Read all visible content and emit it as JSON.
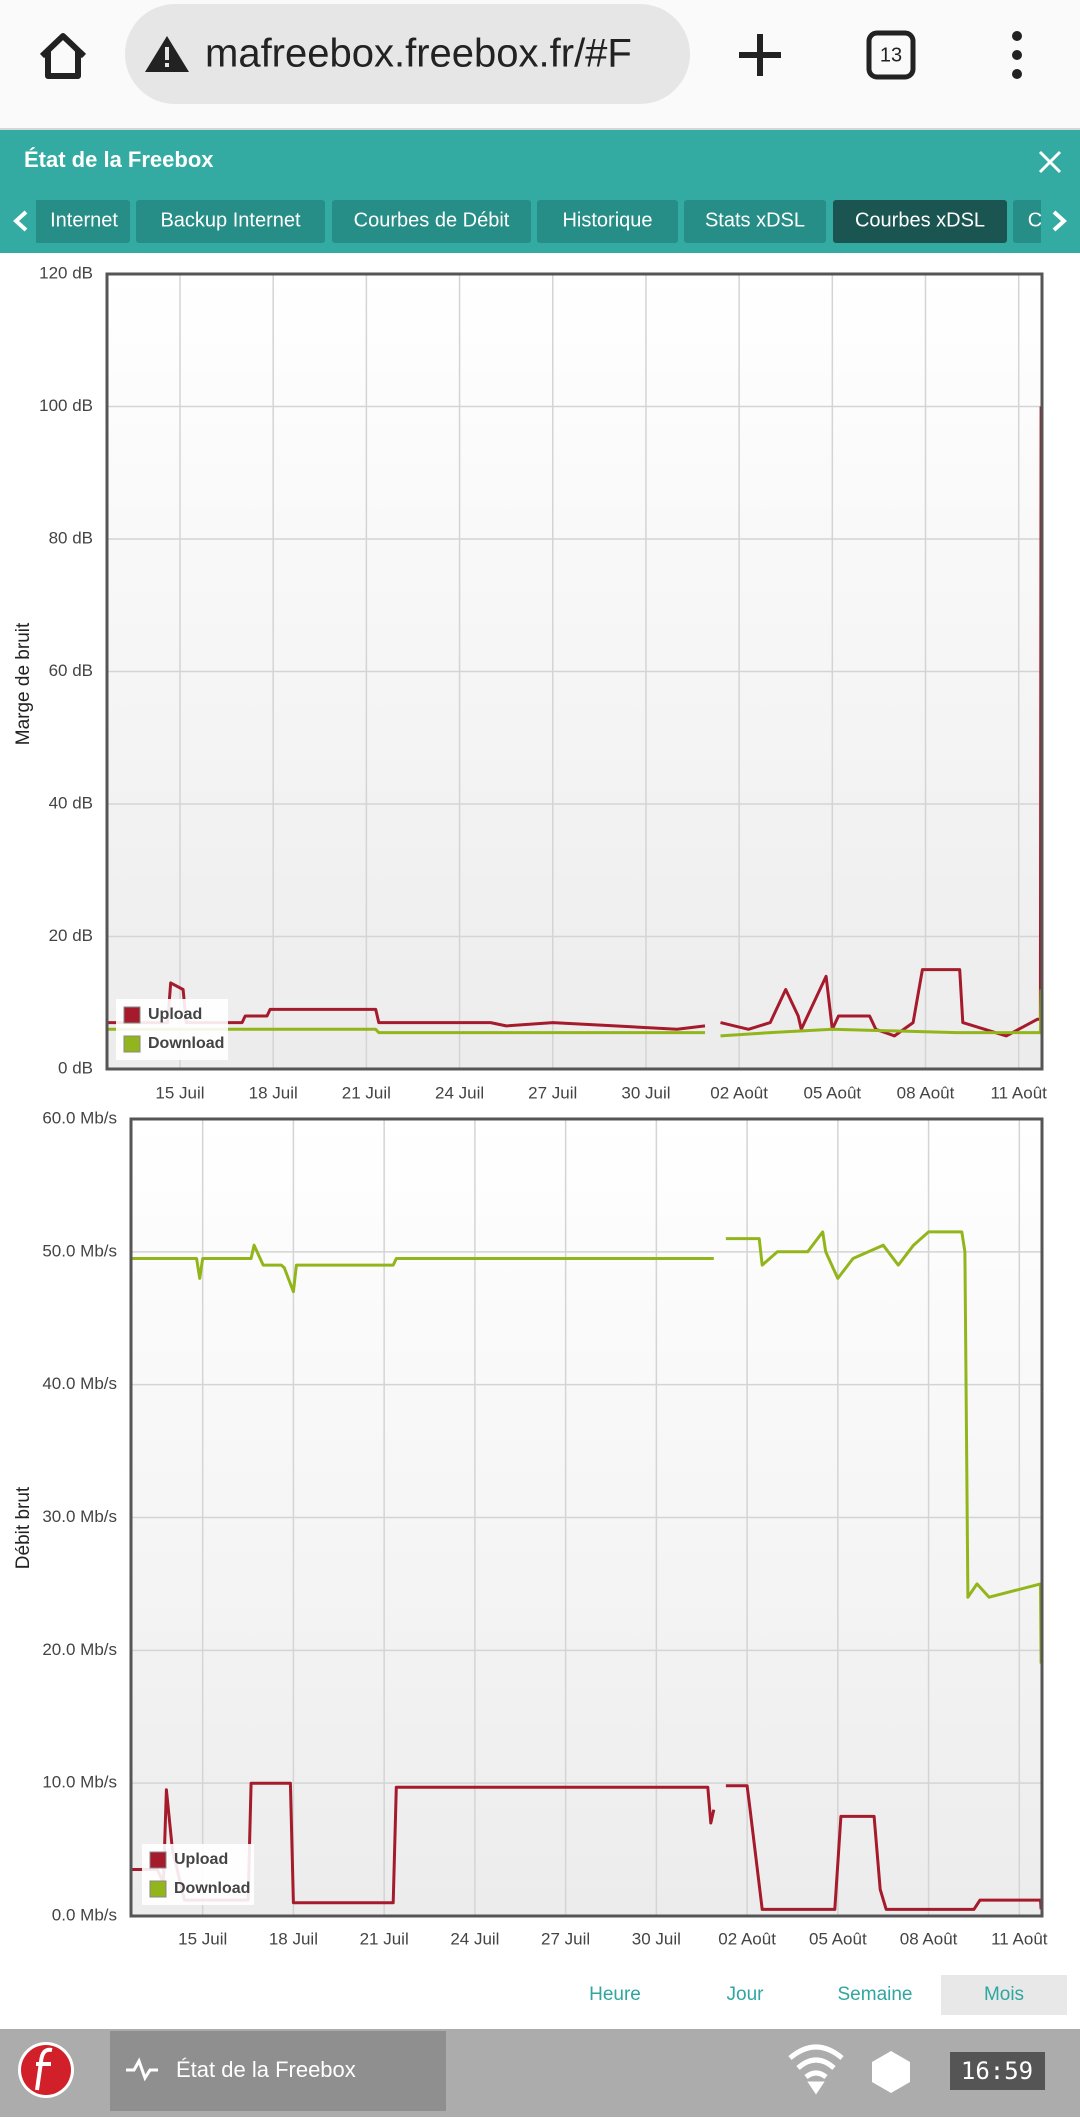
{
  "browser": {
    "url": "mafreebox.freebox.fr/#F",
    "tab_count": "13"
  },
  "header": {
    "title": "État de la Freebox"
  },
  "tabs": [
    "Internet",
    "Backup Internet",
    "Courbes de Débit",
    "Historique",
    "Stats xDSL",
    "Courbes xDSL",
    "C"
  ],
  "active_tab": 5,
  "chart_data": [
    {
      "type": "line",
      "y_label": "Marge de bruit",
      "grid": true,
      "legend": "lower left",
      "xlim": [
        12.65,
        42.75
      ],
      "ylim": [
        0,
        120
      ],
      "xticks": [
        {
          "value": 15,
          "label": "15 Juil"
        },
        {
          "value": 18,
          "label": "18 Juil"
        },
        {
          "value": 21,
          "label": "21 Juil"
        },
        {
          "value": 24,
          "label": "24 Juil"
        },
        {
          "value": 27,
          "label": "27 Juil"
        },
        {
          "value": 30,
          "label": "30 Juil"
        },
        {
          "value": 33,
          "label": "02 Août"
        },
        {
          "value": 36,
          "label": "05 Août"
        },
        {
          "value": 39,
          "label": "08 Août"
        },
        {
          "value": 42,
          "label": "11 Août"
        }
      ],
      "yticks": [
        {
          "value": 0,
          "label": "0 dB"
        },
        {
          "value": 20,
          "label": "20 dB"
        },
        {
          "value": 40,
          "label": "40 dB"
        },
        {
          "value": 60,
          "label": "60 dB"
        },
        {
          "value": 80,
          "label": "80 dB"
        },
        {
          "value": 100,
          "label": "100 dB"
        },
        {
          "value": 120,
          "label": "120 dB"
        }
      ],
      "series": [
        {
          "name": "Upload",
          "color": "#a51b2c",
          "x": [
            12.65,
            14.6,
            14.7,
            15.1,
            15.2,
            17.0,
            17.1,
            17.8,
            17.9,
            21.3,
            21.4,
            25.0,
            25.5,
            27.0,
            29.0,
            31.0,
            31.9,
            32.1,
            32.4,
            33.3,
            34.0,
            34.5,
            34.9,
            35.0,
            35.8,
            36.0,
            36.2,
            37.2,
            37.4,
            38.0,
            38.6,
            38.9,
            40.1,
            40.2,
            41.6,
            42.6,
            42.7,
            42.72
          ],
          "values": [
            7,
            7,
            13,
            12,
            7,
            7,
            8,
            8,
            9,
            9,
            7,
            7,
            6.5,
            7,
            6.5,
            6,
            6.5,
            null,
            7,
            6,
            7,
            12,
            8,
            6,
            14,
            6,
            8,
            8,
            6,
            5,
            7,
            15,
            15,
            7,
            5,
            7.5,
            7.5,
            100
          ]
        },
        {
          "name": "Download",
          "color": "#93b51c",
          "x": [
            12.65,
            18.0,
            21.3,
            21.4,
            31.9,
            32.1,
            32.4,
            34.0,
            36.0,
            40.0,
            42.7,
            42.72
          ],
          "values": [
            6,
            6,
            6,
            5.5,
            5.5,
            null,
            5,
            5.5,
            6,
            5.5,
            5.5,
            12
          ]
        }
      ]
    },
    {
      "type": "line",
      "y_label": "Débit brut",
      "grid": true,
      "legend": "lower left",
      "xlim": [
        12.63,
        42.75
      ],
      "ylim": [
        0,
        60
      ],
      "xticks": [
        {
          "value": 15,
          "label": "15 Juil"
        },
        {
          "value": 18,
          "label": "18 Juil"
        },
        {
          "value": 21,
          "label": "21 Juil"
        },
        {
          "value": 24,
          "label": "24 Juil"
        },
        {
          "value": 27,
          "label": "27 Juil"
        },
        {
          "value": 30,
          "label": "30 Juil"
        },
        {
          "value": 33,
          "label": "02 Août"
        },
        {
          "value": 36,
          "label": "05 Août"
        },
        {
          "value": 39,
          "label": "08 Août"
        },
        {
          "value": 42,
          "label": "11 Août"
        }
      ],
      "yticks": [
        {
          "value": 0,
          "label": "0.0 Mb/s"
        },
        {
          "value": 10,
          "label": "10.0 Mb/s"
        },
        {
          "value": 20,
          "label": "20.0 Mb/s"
        },
        {
          "value": 30,
          "label": "30.0 Mb/s"
        },
        {
          "value": 40,
          "label": "40.0 Mb/s"
        },
        {
          "value": 50,
          "label": "50.0 Mb/s"
        },
        {
          "value": 60,
          "label": "60.0 Mb/s"
        }
      ],
      "series": [
        {
          "name": "Upload",
          "color": "#a51b2c",
          "x": [
            12.63,
            13.5,
            13.7,
            13.8,
            14.0,
            14.4,
            16.5,
            16.6,
            17.9,
            18.0,
            21.3,
            21.4,
            31.7,
            31.8,
            31.9,
            32.0,
            32.3,
            33.0,
            33.1,
            33.5,
            35.9,
            36.1,
            37.2,
            37.4,
            37.6,
            39.5,
            40.5,
            40.7,
            42.7,
            42.72
          ],
          "values": [
            3.5,
            3.5,
            2.5,
            9.5,
            5,
            1.2,
            1.2,
            10,
            10,
            1,
            1,
            9.7,
            9.7,
            7,
            8,
            null,
            9.8,
            9.8,
            8,
            0.5,
            0.5,
            7.5,
            7.5,
            2,
            0.5,
            0.5,
            0.5,
            1.2,
            1.2,
            0.5
          ]
        },
        {
          "name": "Download",
          "color": "#93b51c",
          "x": [
            12.63,
            14.8,
            14.9,
            15.0,
            16.6,
            16.7,
            17.0,
            17.6,
            17.7,
            18.0,
            18.1,
            21.3,
            21.4,
            31.9,
            32.0,
            32.3,
            33.4,
            33.5,
            34.0,
            35.0,
            35.5,
            35.6,
            36.0,
            36.5,
            37.5,
            38.0,
            38.5,
            39.0,
            40.1,
            40.2,
            40.3,
            40.6,
            41.0,
            42.7,
            42.72
          ],
          "values": [
            49.5,
            49.5,
            48,
            49.5,
            49.5,
            50.5,
            49,
            49,
            48.8,
            47,
            49,
            49,
            49.5,
            49.5,
            null,
            51,
            51,
            49,
            50,
            50,
            51.5,
            50,
            48,
            49.5,
            50.5,
            49,
            50.5,
            51.5,
            51.5,
            50,
            24,
            25,
            24,
            25,
            19
          ]
        }
      ]
    }
  ],
  "range_buttons": [
    "Heure",
    "Jour",
    "Semaine",
    "Mois"
  ],
  "active_range": 3,
  "taskbar": {
    "app": "État de la Freebox",
    "clock": "16:59"
  }
}
